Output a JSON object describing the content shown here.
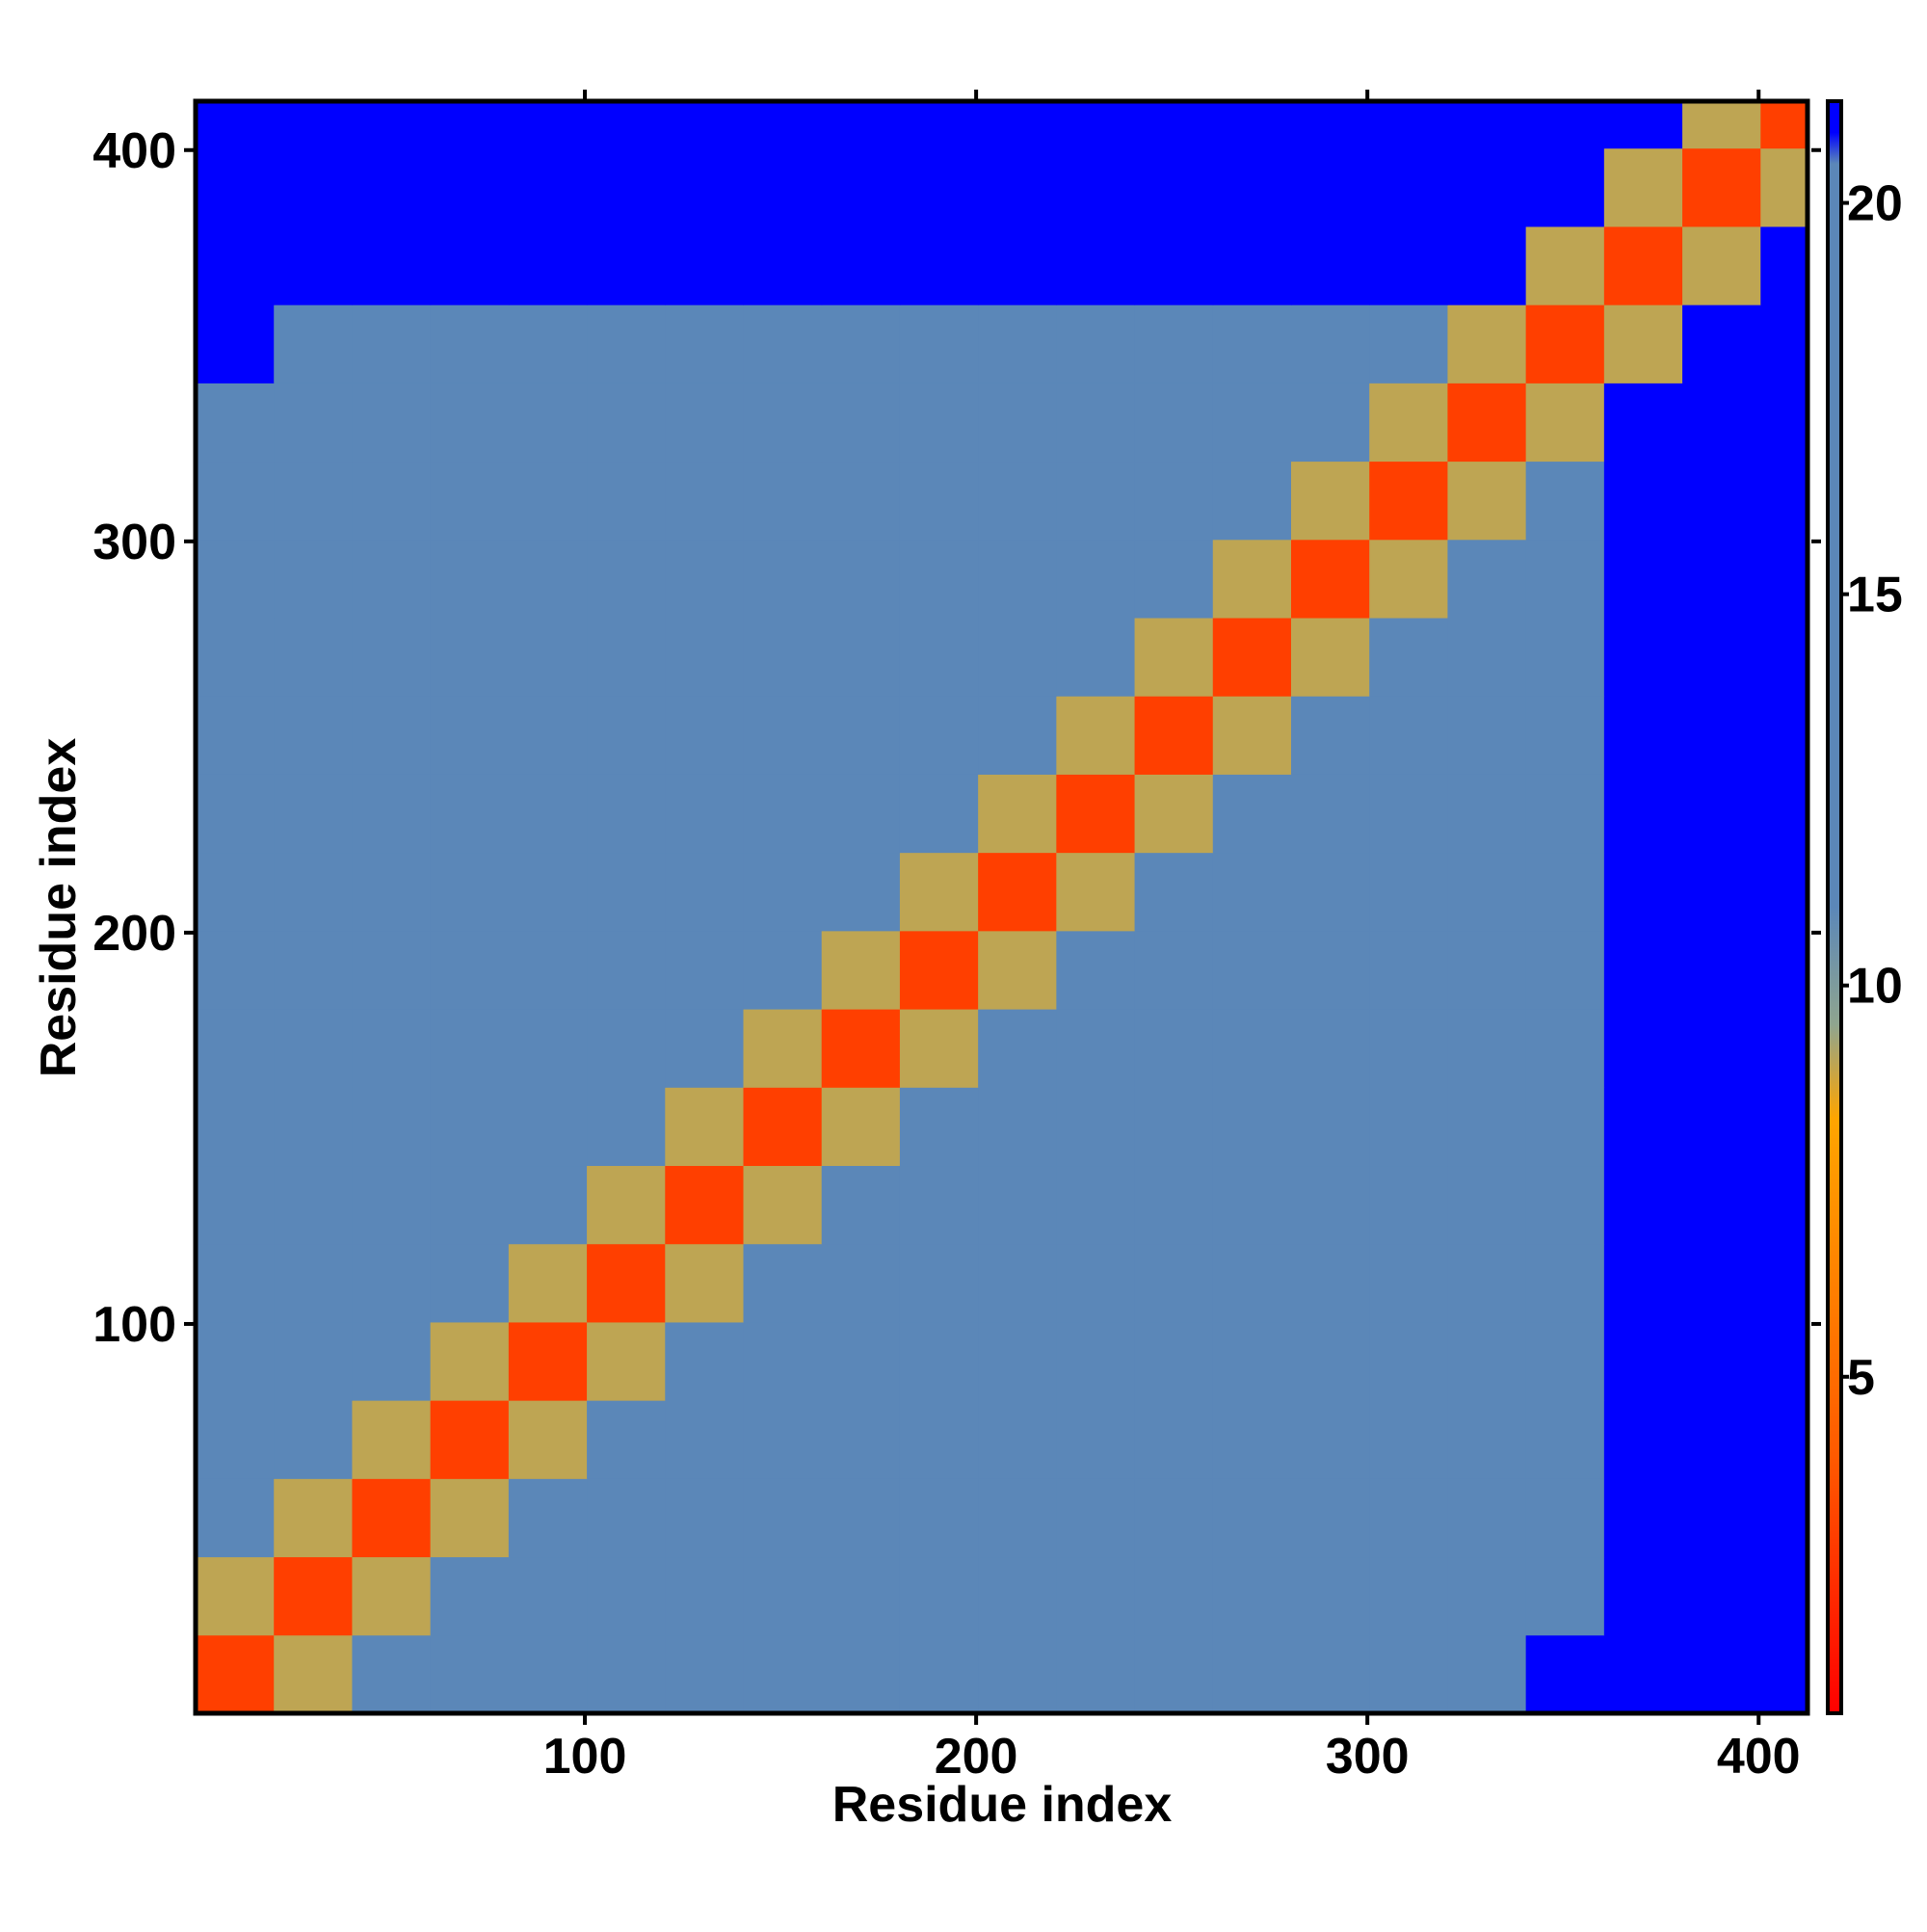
{
  "chart_data": {
    "type": "heatmap",
    "x_label": "Residue index",
    "y_label": "Residue index",
    "x_edges": [
      0.5,
      20.5,
      40.5,
      60.5,
      80.5,
      100.5,
      120.5,
      140.5,
      160.5,
      180.5,
      200.5,
      220.5,
      240.5,
      260.5,
      280.5,
      300.5,
      320.5,
      340.5,
      360.5,
      380.5,
      400.5,
      412.5
    ],
    "y_edges": [
      0.5,
      20.5,
      40.5,
      60.5,
      80.5,
      100.5,
      120.5,
      140.5,
      160.5,
      180.5,
      200.5,
      220.5,
      240.5,
      260.5,
      280.5,
      300.5,
      320.5,
      340.5,
      360.5,
      380.5,
      400.5,
      412.5
    ],
    "z": [
      [
        3,
        9,
        12,
        17,
        17,
        17,
        17,
        17,
        17,
        17,
        17,
        17,
        17,
        17,
        17,
        17,
        17,
        21,
        21,
        21,
        21
      ],
      [
        9,
        3,
        9,
        12,
        17,
        17,
        17,
        17,
        17,
        17,
        17,
        17,
        17,
        17,
        17,
        17,
        17,
        17,
        21,
        21,
        21
      ],
      [
        12,
        9,
        3,
        9,
        12,
        17,
        17,
        17,
        17,
        17,
        17,
        17,
        17,
        17,
        17,
        17,
        17,
        17,
        21,
        21,
        21
      ],
      [
        17,
        12,
        9,
        3,
        9,
        12,
        17,
        17,
        17,
        17,
        17,
        17,
        17,
        17,
        17,
        17,
        17,
        17,
        21,
        21,
        21
      ],
      [
        17,
        17,
        12,
        9,
        3,
        9,
        12,
        17,
        17,
        17,
        17,
        17,
        17,
        17,
        17,
        17,
        17,
        17,
        21,
        21,
        21
      ],
      [
        17,
        17,
        17,
        12,
        9,
        3,
        9,
        12,
        17,
        17,
        17,
        17,
        17,
        17,
        17,
        17,
        17,
        17,
        21,
        21,
        21
      ],
      [
        17,
        17,
        17,
        17,
        12,
        9,
        3,
        9,
        12,
        17,
        17,
        17,
        17,
        17,
        17,
        17,
        17,
        17,
        21,
        21,
        21
      ],
      [
        17,
        17,
        17,
        17,
        17,
        12,
        9,
        3,
        9,
        12,
        17,
        17,
        17,
        17,
        17,
        17,
        17,
        17,
        21,
        21,
        21
      ],
      [
        17,
        17,
        17,
        17,
        17,
        17,
        12,
        9,
        3,
        9,
        12,
        17,
        17,
        17,
        17,
        17,
        17,
        17,
        21,
        21,
        21
      ],
      [
        17,
        17,
        17,
        17,
        17,
        17,
        17,
        12,
        9,
        3,
        9,
        12,
        17,
        17,
        17,
        17,
        17,
        17,
        21,
        21,
        21
      ],
      [
        17,
        17,
        17,
        17,
        17,
        17,
        17,
        17,
        12,
        9,
        3,
        9,
        12,
        17,
        17,
        17,
        17,
        17,
        21,
        21,
        21
      ],
      [
        17,
        17,
        17,
        17,
        17,
        17,
        17,
        17,
        17,
        12,
        9,
        3,
        9,
        12,
        17,
        17,
        17,
        17,
        21,
        21,
        21
      ],
      [
        17,
        17,
        17,
        17,
        17,
        17,
        17,
        17,
        17,
        17,
        12,
        9,
        3,
        9,
        12,
        17,
        17,
        17,
        21,
        21,
        21
      ],
      [
        17,
        17,
        17,
        17,
        17,
        17,
        17,
        17,
        17,
        17,
        17,
        12,
        9,
        3,
        9,
        12,
        17,
        17,
        21,
        21,
        21
      ],
      [
        17,
        17,
        17,
        17,
        17,
        17,
        17,
        17,
        17,
        17,
        17,
        17,
        12,
        9,
        3,
        9,
        12,
        17,
        21,
        21,
        21
      ],
      [
        17,
        17,
        17,
        17,
        17,
        17,
        17,
        17,
        17,
        17,
        17,
        17,
        17,
        12,
        9,
        3,
        9,
        12,
        21,
        21,
        21
      ],
      [
        17,
        17,
        17,
        17,
        17,
        17,
        17,
        17,
        17,
        17,
        17,
        17,
        17,
        17,
        12,
        9,
        3,
        9,
        21,
        21,
        21
      ],
      [
        21,
        17,
        17,
        17,
        17,
        17,
        17,
        17,
        17,
        17,
        17,
        17,
        17,
        17,
        17,
        12,
        9,
        3,
        9,
        21,
        21
      ],
      [
        21,
        21,
        21,
        21,
        21,
        21,
        21,
        21,
        21,
        21,
        21,
        21,
        21,
        21,
        21,
        21,
        21,
        9,
        3,
        9,
        21
      ],
      [
        21,
        21,
        21,
        21,
        21,
        21,
        21,
        21,
        21,
        21,
        21,
        21,
        21,
        21,
        21,
        21,
        21,
        21,
        9,
        3,
        9
      ],
      [
        21,
        21,
        21,
        21,
        21,
        21,
        21,
        21,
        21,
        21,
        21,
        21,
        21,
        21,
        21,
        21,
        21,
        21,
        21,
        9,
        3
      ]
    ],
    "xlim": [
      0.5,
      412.5
    ],
    "ylim": [
      0.5,
      412.5
    ],
    "xticks": [
      100,
      200,
      300,
      400
    ],
    "yticks": [
      100,
      200,
      300,
      400
    ],
    "clim": [
      0.7,
      21.3
    ],
    "cticks": [
      5,
      10,
      15,
      20
    ],
    "colorscale": [
      {
        "value": 0.7,
        "color": "#ff0000"
      },
      {
        "value": 4,
        "color": "#ff5a00"
      },
      {
        "value": 8.3,
        "color": "#ffa500"
      },
      {
        "value": 9.5,
        "color": "#8fa58f"
      },
      {
        "value": 11,
        "color": "#5b87b8"
      },
      {
        "value": 20.5,
        "color": "#5b87b8"
      },
      {
        "value": 20.9,
        "color": "#0000ff"
      },
      {
        "value": 21.3,
        "color": "#0000ff"
      }
    ]
  }
}
